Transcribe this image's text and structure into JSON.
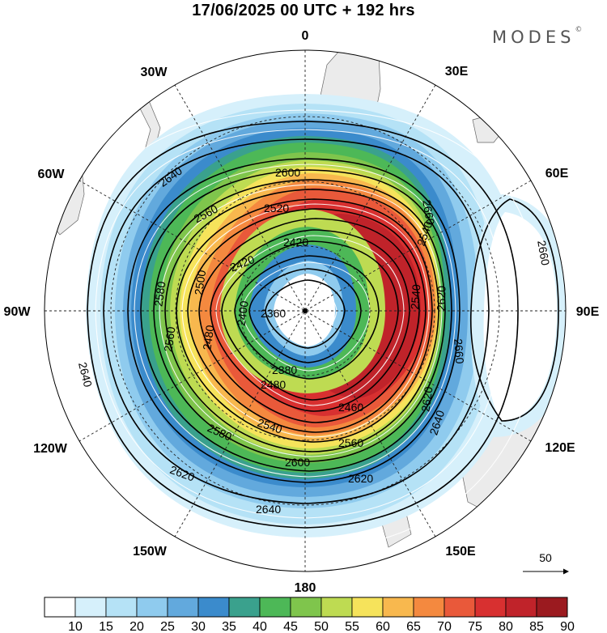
{
  "title": "17/06/2025  00 UTC  + 192 hrs",
  "brand": {
    "name": "MODES",
    "mark": "©"
  },
  "map": {
    "projection": "polar-stereographic",
    "hemisphere": "south",
    "meridian_labels": [
      "0",
      "30E",
      "60E",
      "90E",
      "120E",
      "150E",
      "180",
      "150W",
      "120W",
      "90W",
      "60W",
      "30W"
    ],
    "contour_labels": [
      "2360",
      "2380",
      "2400",
      "2420",
      "2420",
      "2460",
      "2480",
      "2480",
      "2500",
      "2520",
      "2540",
      "2540",
      "2540",
      "2560",
      "2560",
      "2560",
      "2580",
      "2580",
      "2600",
      "2600",
      "2620",
      "2620",
      "2620",
      "2620",
      "2640",
      "2640",
      "2640",
      "2640",
      "2660",
      "2660",
      "2660"
    ],
    "vector_reference": {
      "value": "50"
    }
  },
  "colorbar": {
    "labels": [
      "10",
      "15",
      "20",
      "25",
      "30",
      "35",
      "40",
      "45",
      "50",
      "55",
      "60",
      "65",
      "70",
      "75",
      "80",
      "85",
      "90"
    ],
    "colors": [
      "#ffffff",
      "#d6f0fb",
      "#b5e2f6",
      "#8fcbee",
      "#62a9dd",
      "#3b8bcc",
      "#3aa18d",
      "#4db857",
      "#7fc54c",
      "#bedb52",
      "#f6e35b",
      "#f8b84e",
      "#f4893f",
      "#e9593a",
      "#d83030",
      "#c0232a",
      "#9b1a1f"
    ]
  }
}
